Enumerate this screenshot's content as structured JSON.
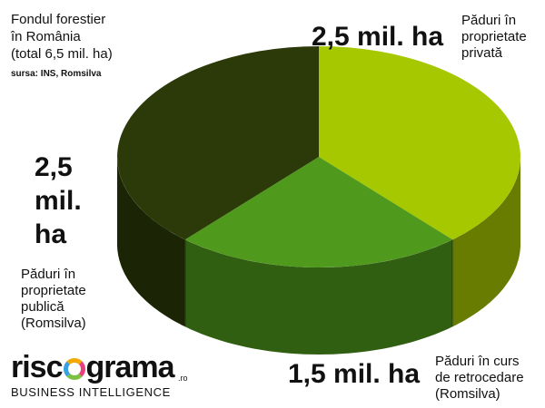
{
  "chart_data": {
    "type": "pie",
    "title": "Fondul forestier\nîn România\n(total 6,5 mil. ha)",
    "source": "sursa: INS, Romsilva",
    "slices": [
      {
        "value": 2.5,
        "label": "2,5 mil. ha",
        "description": "Păduri în\nproprietate\nprivată",
        "color": "#a6c800"
      },
      {
        "value": 1.5,
        "label": "1,5 mil. ha",
        "description": "Păduri în curs\nde retrocedare\n(Romsilva)",
        "color": "#4f9a1d"
      },
      {
        "value": 2.5,
        "label": "2,5 mil. ha",
        "description": "Păduri în\nproprietate\npublică\n(Romsilva)",
        "color": "#2b3a08"
      }
    ]
  },
  "logo": {
    "word_start": "risc",
    "word_end": "grama",
    "tld": ".ro",
    "tagline": "BUSINESS INTELLIGENCE"
  }
}
